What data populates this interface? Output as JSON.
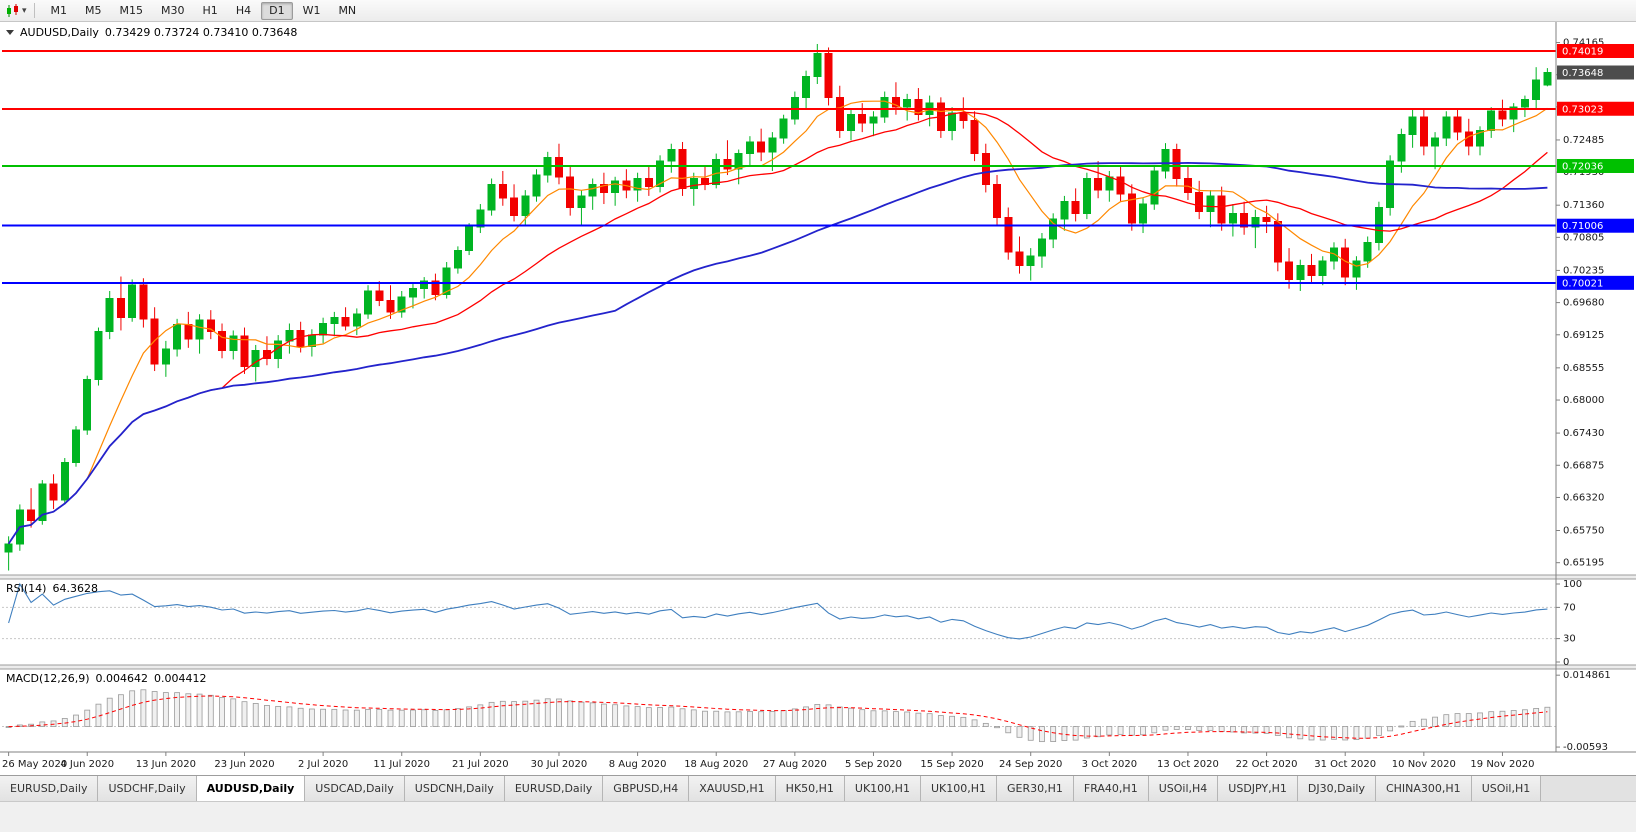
{
  "toolbar": {
    "timeframes": [
      "M1",
      "M5",
      "M15",
      "M30",
      "H1",
      "H4",
      "D1",
      "W1",
      "MN"
    ],
    "active_timeframe": "D1"
  },
  "chart": {
    "title": "AUDUSD,Daily",
    "ohlc_text": "0.73429 0.73724 0.73410 0.73648"
  },
  "price_axis": {
    "ticks": [
      "0.74165",
      "0.73610",
      "0.73055",
      "0.72485",
      "0.71930",
      "0.71360",
      "0.70805",
      "0.70235",
      "0.69680",
      "0.69125",
      "0.68555",
      "0.68000",
      "0.67430",
      "0.66875",
      "0.66320",
      "0.65750",
      "0.65195"
    ]
  },
  "levels": [
    {
      "price": 0.74019,
      "label": "0.74019",
      "color": "#ff0000",
      "type": "resistance-line"
    },
    {
      "price": 0.73648,
      "label": "0.73648",
      "color": "#4d4d4d",
      "type": "current-price"
    },
    {
      "price": 0.73023,
      "label": "0.73023",
      "color": "#ff0000",
      "type": "resistance-line"
    },
    {
      "price": 0.72036,
      "label": "0.72036",
      "color": "#00c000",
      "type": "support-line"
    },
    {
      "price": 0.71006,
      "label": "0.71006",
      "color": "#0000ff",
      "type": "support-line"
    },
    {
      "price": 0.70021,
      "label": "0.70021",
      "color": "#0000ff",
      "type": "support-line"
    }
  ],
  "chart_data": {
    "type": "candlestick",
    "symbol": "AUDUSD",
    "timeframe": "Daily",
    "ohlc_current": {
      "open": 0.73429,
      "high": 0.73724,
      "low": 0.7341,
      "close": 0.73648
    },
    "ylim": [
      0.65,
      0.7445
    ],
    "label_every": 7,
    "x_labels": [
      "26 May 2020",
      "4 Jun 2020",
      "13 Jun 2020",
      "23 Jun 2020",
      "2 Jul 2020",
      "11 Jul 2020",
      "21 Jul 2020",
      "30 Jul 2020",
      "8 Aug 2020",
      "18 Aug 2020",
      "27 Aug 2020",
      "5 Sep 2020",
      "15 Sep 2020",
      "24 Sep 2020",
      "3 Oct 2020",
      "13 Oct 2020",
      "22 Oct 2020",
      "31 Oct 2020",
      "10 Nov 2020",
      "19 Nov 2020"
    ],
    "candles": [
      [
        0.6538,
        0.6565,
        0.6506,
        0.6552
      ],
      [
        0.6552,
        0.662,
        0.654,
        0.661
      ],
      [
        0.661,
        0.6648,
        0.658,
        0.6592
      ],
      [
        0.6592,
        0.6662,
        0.6585,
        0.6655
      ],
      [
        0.6655,
        0.6672,
        0.6612,
        0.6628
      ],
      [
        0.6628,
        0.67,
        0.662,
        0.6692
      ],
      [
        0.6692,
        0.6755,
        0.6685,
        0.6748
      ],
      [
        0.6748,
        0.6842,
        0.674,
        0.6835
      ],
      [
        0.6835,
        0.6925,
        0.6825,
        0.6918
      ],
      [
        0.6918,
        0.6988,
        0.6905,
        0.6975
      ],
      [
        0.6975,
        0.7013,
        0.692,
        0.6942
      ],
      [
        0.6942,
        0.7008,
        0.6935,
        0.6998
      ],
      [
        0.6998,
        0.701,
        0.6925,
        0.694
      ],
      [
        0.694,
        0.696,
        0.685,
        0.6862
      ],
      [
        0.6862,
        0.6902,
        0.684,
        0.6888
      ],
      [
        0.6888,
        0.694,
        0.6875,
        0.693
      ],
      [
        0.693,
        0.6952,
        0.689,
        0.6905
      ],
      [
        0.6905,
        0.6948,
        0.688,
        0.6938
      ],
      [
        0.6938,
        0.6955,
        0.6905,
        0.6918
      ],
      [
        0.6918,
        0.6932,
        0.6872,
        0.6885
      ],
      [
        0.6885,
        0.692,
        0.687,
        0.691
      ],
      [
        0.691,
        0.6925,
        0.6845,
        0.6858
      ],
      [
        0.6858,
        0.6895,
        0.6832,
        0.6885
      ],
      [
        0.6885,
        0.691,
        0.686,
        0.6872
      ],
      [
        0.6872,
        0.6912,
        0.6855,
        0.6902
      ],
      [
        0.6902,
        0.6932,
        0.688,
        0.692
      ],
      [
        0.692,
        0.6935,
        0.6882,
        0.6892
      ],
      [
        0.6892,
        0.6922,
        0.6875,
        0.6912
      ],
      [
        0.6912,
        0.6942,
        0.6898,
        0.6932
      ],
      [
        0.6932,
        0.6952,
        0.691,
        0.6942
      ],
      [
        0.6942,
        0.696,
        0.692,
        0.6928
      ],
      [
        0.6928,
        0.6958,
        0.6912,
        0.6948
      ],
      [
        0.6948,
        0.6998,
        0.694,
        0.6988
      ],
      [
        0.6988,
        0.7005,
        0.6962,
        0.6972
      ],
      [
        0.6972,
        0.6998,
        0.694,
        0.6952
      ],
      [
        0.6952,
        0.6988,
        0.6942,
        0.6978
      ],
      [
        0.6978,
        0.7,
        0.6958,
        0.6992
      ],
      [
        0.6992,
        0.7012,
        0.6975,
        0.7005
      ],
      [
        0.7005,
        0.7018,
        0.6972,
        0.6982
      ],
      [
        0.6982,
        0.7038,
        0.6975,
        0.7028
      ],
      [
        0.7028,
        0.7065,
        0.7018,
        0.7058
      ],
      [
        0.7058,
        0.7105,
        0.705,
        0.7098
      ],
      [
        0.7098,
        0.7138,
        0.7088,
        0.7128
      ],
      [
        0.7128,
        0.7182,
        0.7118,
        0.7172
      ],
      [
        0.7172,
        0.7195,
        0.7135,
        0.7148
      ],
      [
        0.7148,
        0.7172,
        0.7108,
        0.7118
      ],
      [
        0.7118,
        0.7162,
        0.7102,
        0.7152
      ],
      [
        0.7152,
        0.7198,
        0.7142,
        0.7188
      ],
      [
        0.7188,
        0.7228,
        0.7175,
        0.7218
      ],
      [
        0.7218,
        0.7242,
        0.7172,
        0.7185
      ],
      [
        0.7185,
        0.7205,
        0.7118,
        0.7132
      ],
      [
        0.7132,
        0.7162,
        0.7102,
        0.7152
      ],
      [
        0.7152,
        0.7182,
        0.7128,
        0.7172
      ],
      [
        0.7172,
        0.7192,
        0.7138,
        0.7158
      ],
      [
        0.7158,
        0.7185,
        0.7135,
        0.7178
      ],
      [
        0.7178,
        0.7198,
        0.7148,
        0.7162
      ],
      [
        0.7162,
        0.7192,
        0.7142,
        0.7182
      ],
      [
        0.7182,
        0.7202,
        0.7152,
        0.7168
      ],
      [
        0.7168,
        0.7222,
        0.7158,
        0.7212
      ],
      [
        0.7212,
        0.7242,
        0.7192,
        0.7232
      ],
      [
        0.7232,
        0.7245,
        0.7152,
        0.7165
      ],
      [
        0.7165,
        0.7192,
        0.7135,
        0.7182
      ],
      [
        0.7182,
        0.7205,
        0.7162,
        0.7172
      ],
      [
        0.7172,
        0.7225,
        0.7165,
        0.7215
      ],
      [
        0.7215,
        0.7248,
        0.7188,
        0.7198
      ],
      [
        0.7198,
        0.7232,
        0.7172,
        0.7225
      ],
      [
        0.7225,
        0.7255,
        0.7205,
        0.7245
      ],
      [
        0.7245,
        0.7268,
        0.7212,
        0.7228
      ],
      [
        0.7228,
        0.7262,
        0.7195,
        0.7252
      ],
      [
        0.7252,
        0.7292,
        0.7242,
        0.7285
      ],
      [
        0.7285,
        0.7332,
        0.7275,
        0.7322
      ],
      [
        0.7322,
        0.7368,
        0.7302,
        0.7358
      ],
      [
        0.7358,
        0.7414,
        0.7345,
        0.7398
      ],
      [
        0.7398,
        0.7408,
        0.7308,
        0.7322
      ],
      [
        0.7322,
        0.7342,
        0.7252,
        0.7265
      ],
      [
        0.7265,
        0.7302,
        0.7248,
        0.7292
      ],
      [
        0.7292,
        0.7312,
        0.7262,
        0.7278
      ],
      [
        0.7278,
        0.7298,
        0.7255,
        0.7288
      ],
      [
        0.7288,
        0.7332,
        0.7278,
        0.7322
      ],
      [
        0.7322,
        0.7348,
        0.7292,
        0.7305
      ],
      [
        0.7305,
        0.7328,
        0.7282,
        0.7318
      ],
      [
        0.7318,
        0.7338,
        0.7282,
        0.7292
      ],
      [
        0.7292,
        0.7325,
        0.7272,
        0.7312
      ],
      [
        0.7312,
        0.7322,
        0.7252,
        0.7265
      ],
      [
        0.7265,
        0.7305,
        0.7248,
        0.7295
      ],
      [
        0.7295,
        0.7322,
        0.7268,
        0.7282
      ],
      [
        0.7282,
        0.7298,
        0.7212,
        0.7225
      ],
      [
        0.7225,
        0.7242,
        0.7158,
        0.7172
      ],
      [
        0.7172,
        0.7188,
        0.7102,
        0.7115
      ],
      [
        0.7115,
        0.7132,
        0.7042,
        0.7055
      ],
      [
        0.7055,
        0.7082,
        0.7018,
        0.7032
      ],
      [
        0.7032,
        0.7062,
        0.7006,
        0.7048
      ],
      [
        0.7048,
        0.7088,
        0.7028,
        0.7078
      ],
      [
        0.7078,
        0.7122,
        0.7062,
        0.7112
      ],
      [
        0.7112,
        0.7152,
        0.7092,
        0.7142
      ],
      [
        0.7142,
        0.7165,
        0.7108,
        0.7122
      ],
      [
        0.7122,
        0.7192,
        0.7112,
        0.7182
      ],
      [
        0.7182,
        0.7212,
        0.7148,
        0.7162
      ],
      [
        0.7162,
        0.7195,
        0.7142,
        0.7185
      ],
      [
        0.7185,
        0.7205,
        0.7142,
        0.7155
      ],
      [
        0.7155,
        0.7172,
        0.7092,
        0.7105
      ],
      [
        0.7105,
        0.7148,
        0.7088,
        0.7138
      ],
      [
        0.7138,
        0.7205,
        0.7128,
        0.7195
      ],
      [
        0.7195,
        0.7243,
        0.7182,
        0.7232
      ],
      [
        0.7232,
        0.7242,
        0.7168,
        0.7182
      ],
      [
        0.7182,
        0.7205,
        0.7145,
        0.7158
      ],
      [
        0.7158,
        0.7178,
        0.7112,
        0.7125
      ],
      [
        0.7125,
        0.7162,
        0.7098,
        0.7152
      ],
      [
        0.7152,
        0.7168,
        0.7092,
        0.7105
      ],
      [
        0.7105,
        0.7138,
        0.7082,
        0.7122
      ],
      [
        0.7122,
        0.7142,
        0.7085,
        0.7098
      ],
      [
        0.7098,
        0.7128,
        0.7062,
        0.7115
      ],
      [
        0.7115,
        0.7135,
        0.7088,
        0.7108
      ],
      [
        0.7108,
        0.7122,
        0.7022,
        0.7038
      ],
      [
        0.7038,
        0.7062,
        0.6992,
        0.7008
      ],
      [
        0.7008,
        0.7042,
        0.6988,
        0.7032
      ],
      [
        0.7032,
        0.7052,
        0.7002,
        0.7015
      ],
      [
        0.7015,
        0.7048,
        0.6998,
        0.704
      ],
      [
        0.704,
        0.7072,
        0.7025,
        0.7062
      ],
      [
        0.7062,
        0.7078,
        0.6998,
        0.7012
      ],
      [
        0.7012,
        0.7048,
        0.699,
        0.704
      ],
      [
        0.704,
        0.7082,
        0.7028,
        0.7072
      ],
      [
        0.7072,
        0.7142,
        0.7058,
        0.7132
      ],
      [
        0.7132,
        0.7222,
        0.7118,
        0.7212
      ],
      [
        0.7212,
        0.7268,
        0.7192,
        0.7258
      ],
      [
        0.7258,
        0.7302,
        0.7235,
        0.7288
      ],
      [
        0.7288,
        0.7302,
        0.7222,
        0.7238
      ],
      [
        0.7238,
        0.7262,
        0.7198,
        0.7252
      ],
      [
        0.7252,
        0.7298,
        0.7238,
        0.7288
      ],
      [
        0.7288,
        0.7302,
        0.7248,
        0.7262
      ],
      [
        0.7262,
        0.7285,
        0.7222,
        0.7238
      ],
      [
        0.7238,
        0.7272,
        0.7222,
        0.7265
      ],
      [
        0.7265,
        0.7305,
        0.7252,
        0.7298
      ],
      [
        0.7298,
        0.7318,
        0.7272,
        0.7285
      ],
      [
        0.7285,
        0.7312,
        0.7262,
        0.7305
      ],
      [
        0.7305,
        0.7325,
        0.7288,
        0.7318
      ],
      [
        0.7318,
        0.7374,
        0.7302,
        0.7352
      ],
      [
        0.73429,
        0.73724,
        0.7341,
        0.73648
      ]
    ],
    "moving_averages": [
      {
        "period": 8,
        "color": "#ff8800",
        "width": 1.2
      },
      {
        "period": 20,
        "color": "#ff0000",
        "width": 1.3
      },
      {
        "period": 55,
        "color": "#2323cc",
        "width": 1.8
      }
    ],
    "indicators": {
      "rsi": {
        "label": "RSI(14)",
        "value": "64.3628",
        "period": 14,
        "color": "#3f7fbf",
        "levels": [
          70,
          30
        ],
        "ticks": [
          "100",
          "70",
          "30",
          "0"
        ],
        "scale": [
          0,
          100
        ]
      },
      "macd": {
        "label": "MACD(12,26,9)",
        "value_main": "0.004642",
        "value_signal": "0.004412",
        "fast": 12,
        "slow": 26,
        "signal": 9,
        "hist_color": "#9a9a9a",
        "signal_color": "#ff0000",
        "ticks": [
          "0.014861",
          "-0.00593"
        ],
        "range": [
          -0.0062,
          0.0152
        ]
      }
    }
  },
  "tabs": {
    "items": [
      "EURUSD,Daily",
      "USDCHF,Daily",
      "AUDUSD,Daily",
      "USDCAD,Daily",
      "USDCNH,Daily",
      "EURUSD,Daily",
      "GBPUSD,H4",
      "XAUUSD,H1",
      "HK50,H1",
      "UK100,H1",
      "UK100,H1",
      "GER30,H1",
      "FRA40,H1",
      "USOil,H4",
      "USDJPY,H1",
      "DJ30,Daily",
      "CHINA300,H1",
      "USOil,H1"
    ],
    "active_index": 2
  }
}
